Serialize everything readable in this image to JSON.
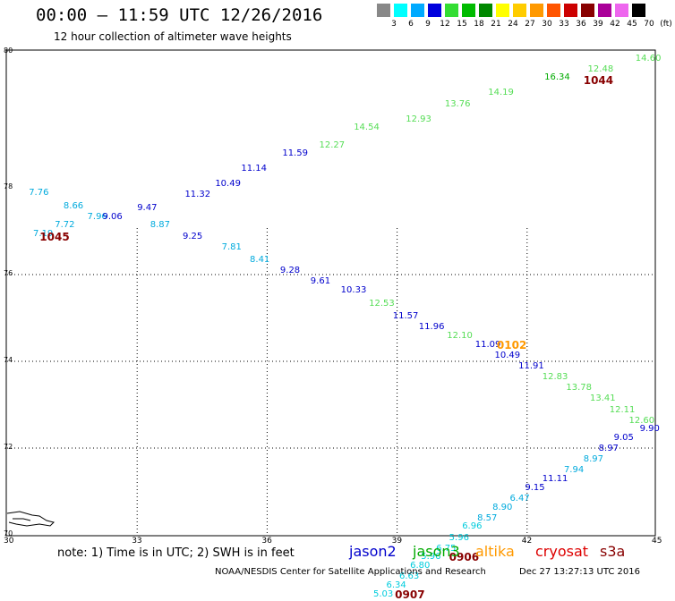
{
  "title": "00:00 – 11:59 UTC 12/26/2016",
  "subtitle": "12 hour collection of altimeter wave heights",
  "legend": {
    "labels": [
      "3",
      "6",
      "9",
      "12",
      "15",
      "18",
      "21",
      "24",
      "27",
      "30",
      "33",
      "36",
      "39",
      "42",
      "45",
      "70",
      "(ft)"
    ],
    "colors": [
      "#888888",
      "#00ffff",
      "#00aaff",
      "#0000dd",
      "#33dd33",
      "#00bb00",
      "#008800",
      "#ffff00",
      "#ffcc00",
      "#ff9900",
      "#ff5500",
      "#cc0000",
      "#880000",
      "#aa0099",
      "#ee66ee",
      "#000000"
    ]
  },
  "lat_labels": [
    {
      "text": "80",
      "lat": 80
    },
    {
      "text": "78",
      "lat": 78
    },
    {
      "text": "76",
      "lat": 76
    },
    {
      "text": "74",
      "lat": 74
    },
    {
      "text": "72",
      "lat": 72
    },
    {
      "text": "70",
      "lat": 70
    }
  ],
  "lon_labels": [
    {
      "text": "30",
      "lon": 30
    },
    {
      "text": "33",
      "lon": 33
    },
    {
      "text": "36",
      "lon": 36
    },
    {
      "text": "39",
      "lon": 39
    },
    {
      "text": "42",
      "lon": 42
    },
    {
      "text": "45",
      "lon": 45
    }
  ],
  "readings": [
    {
      "v": "7.76",
      "lon": 30.5,
      "lat": 78.0,
      "c": "#00aadd"
    },
    {
      "v": "8.66",
      "lon": 31.3,
      "lat": 77.7,
      "c": "#00aadd"
    },
    {
      "v": "7.96",
      "lon": 31.85,
      "lat": 77.45,
      "c": "#00aadd"
    },
    {
      "v": "9.06",
      "lon": 32.2,
      "lat": 77.45,
      "c": "#0000cc"
    },
    {
      "v": "7.72",
      "lon": 31.1,
      "lat": 77.25,
      "c": "#00aadd"
    },
    {
      "v": "7.19",
      "lon": 30.6,
      "lat": 77.05,
      "c": "#00aadd"
    },
    {
      "v": "9.47",
      "lon": 33.0,
      "lat": 77.65,
      "c": "#0000cc"
    },
    {
      "v": "8.87",
      "lon": 33.3,
      "lat": 77.25,
      "c": "#00aadd"
    },
    {
      "v": "11.32",
      "lon": 34.1,
      "lat": 77.95,
      "c": "#0000cc"
    },
    {
      "v": "10.49",
      "lon": 34.8,
      "lat": 78.2,
      "c": "#0000cc"
    },
    {
      "v": "11.14",
      "lon": 35.4,
      "lat": 78.55,
      "c": "#0000cc"
    },
    {
      "v": "11.59",
      "lon": 36.35,
      "lat": 78.9,
      "c": "#0000cc"
    },
    {
      "v": "12.27",
      "lon": 37.2,
      "lat": 79.1,
      "c": "#55dd55"
    },
    {
      "v": "14.54",
      "lon": 38.0,
      "lat": 79.5,
      "c": "#55dd55"
    },
    {
      "v": "12.93",
      "lon": 39.2,
      "lat": 79.7,
      "c": "#55dd55"
    },
    {
      "v": "13.76",
      "lon": 40.1,
      "lat": 80.05,
      "c": "#55dd55"
    },
    {
      "v": "14.19",
      "lon": 41.1,
      "lat": 80.3,
      "c": "#55dd55"
    },
    {
      "v": "16.34",
      "lon": 42.4,
      "lat": 80.65,
      "c": "#00aa00"
    },
    {
      "v": "12.48",
      "lon": 43.4,
      "lat": 80.85,
      "c": "#55dd55"
    },
    {
      "v": "14.60",
      "lon": 44.5,
      "lat": 81.1,
      "c": "#55dd55"
    },
    {
      "v": "9.25",
      "lon": 34.05,
      "lat": 77.0,
      "c": "#0000cc"
    },
    {
      "v": "7.81",
      "lon": 34.95,
      "lat": 76.75,
      "c": "#00aadd"
    },
    {
      "v": "8.41",
      "lon": 35.6,
      "lat": 76.45,
      "c": "#00aadd"
    },
    {
      "v": "9.28",
      "lon": 36.3,
      "lat": 76.2,
      "c": "#0000cc"
    },
    {
      "v": "9.61",
      "lon": 37.0,
      "lat": 75.95,
      "c": "#0000cc"
    },
    {
      "v": "10.33",
      "lon": 37.7,
      "lat": 75.75,
      "c": "#0000cc"
    },
    {
      "v": "12.53",
      "lon": 38.35,
      "lat": 75.45,
      "c": "#55dd55"
    },
    {
      "v": "11.57",
      "lon": 38.9,
      "lat": 75.15,
      "c": "#0000cc"
    },
    {
      "v": "11.96",
      "lon": 39.5,
      "lat": 74.9,
      "c": "#0000cc"
    },
    {
      "v": "12.10",
      "lon": 40.15,
      "lat": 74.7,
      "c": "#55dd55"
    },
    {
      "v": "11.09",
      "lon": 40.8,
      "lat": 74.5,
      "c": "#0000cc"
    },
    {
      "v": "10.49",
      "lon": 41.25,
      "lat": 74.25,
      "c": "#0000cc"
    },
    {
      "v": "11.91",
      "lon": 41.8,
      "lat": 74.0,
      "c": "#0000cc"
    },
    {
      "v": "12.83",
      "lon": 42.35,
      "lat": 73.75,
      "c": "#55dd55"
    },
    {
      "v": "13.78",
      "lon": 42.9,
      "lat": 73.5,
      "c": "#55dd55"
    },
    {
      "v": "13.41",
      "lon": 43.45,
      "lat": 73.25,
      "c": "#55dd55"
    },
    {
      "v": "12.11",
      "lon": 43.9,
      "lat": 73.0,
      "c": "#55dd55"
    },
    {
      "v": "12.60",
      "lon": 44.35,
      "lat": 72.75,
      "c": "#55dd55"
    },
    {
      "v": "9.90",
      "lon": 44.6,
      "lat": 72.55,
      "c": "#0000cc"
    },
    {
      "v": "9.05",
      "lon": 44.0,
      "lat": 72.35,
      "c": "#0000cc"
    },
    {
      "v": "8.97",
      "lon": 43.65,
      "lat": 72.1,
      "c": "#0000cc"
    },
    {
      "v": "8.97",
      "lon": 43.3,
      "lat": 71.85,
      "c": "#00aadd"
    },
    {
      "v": "7.94",
      "lon": 42.85,
      "lat": 71.6,
      "c": "#00aadd"
    },
    {
      "v": "11.11",
      "lon": 42.35,
      "lat": 71.4,
      "c": "#0000cc"
    },
    {
      "v": "9.15",
      "lon": 41.95,
      "lat": 71.2,
      "c": "#0000cc"
    },
    {
      "v": "6.47",
      "lon": 41.6,
      "lat": 70.95,
      "c": "#00aadd"
    },
    {
      "v": "8.90",
      "lon": 41.2,
      "lat": 70.75,
      "c": "#00aadd"
    },
    {
      "v": "8.57",
      "lon": 40.85,
      "lat": 70.5,
      "c": "#00aadd"
    },
    {
      "v": "6.96",
      "lon": 40.5,
      "lat": 70.3,
      "c": "#00ccdd"
    },
    {
      "v": "5.96",
      "lon": 40.2,
      "lat": 70.05,
      "c": "#00ccdd"
    },
    {
      "v": "6.75",
      "lon": 39.9,
      "lat": 69.8,
      "c": "#00ccdd"
    },
    {
      "v": "5.96",
      "lon": 39.55,
      "lat": 69.6,
      "c": "#00ccdd"
    },
    {
      "v": "6.80",
      "lon": 39.3,
      "lat": 69.4,
      "c": "#00ccdd"
    },
    {
      "v": "6.63",
      "lon": 39.05,
      "lat": 69.15,
      "c": "#00ccdd"
    },
    {
      "v": "6.34",
      "lon": 38.75,
      "lat": 68.95,
      "c": "#00ccdd"
    },
    {
      "v": "5.03",
      "lon": 38.45,
      "lat": 68.75,
      "c": "#00ccdd"
    }
  ],
  "time_tags": [
    {
      "t": "1045",
      "lon": 30.75,
      "lat": 77.0,
      "c": "#880000"
    },
    {
      "t": "1044",
      "lon": 43.3,
      "lat": 80.6,
      "c": "#880000"
    },
    {
      "t": "0102",
      "lon": 41.3,
      "lat": 74.5,
      "c": "#ff9900"
    },
    {
      "t": "0906",
      "lon": 40.2,
      "lat": 69.6,
      "c": "#880000"
    },
    {
      "t": "0907",
      "lon": 38.95,
      "lat": 68.75,
      "c": "#880000"
    }
  ],
  "note": "note:  1) Time is in UTC;  2) SWH is in feet",
  "satellites": [
    {
      "name": "jason2",
      "c": "#0000cc"
    },
    {
      "name": "jason3",
      "c": "#00aa00"
    },
    {
      "name": "altika",
      "c": "#ff9900"
    },
    {
      "name": "cryosat",
      "c": "#dd0000"
    },
    {
      "name": "s3a",
      "c": "#880000"
    }
  ],
  "credit": "NOAA/NESDIS Center for Satellite Applications and Research",
  "stamp": "Dec 27 13:27:13 UTC 2016"
}
